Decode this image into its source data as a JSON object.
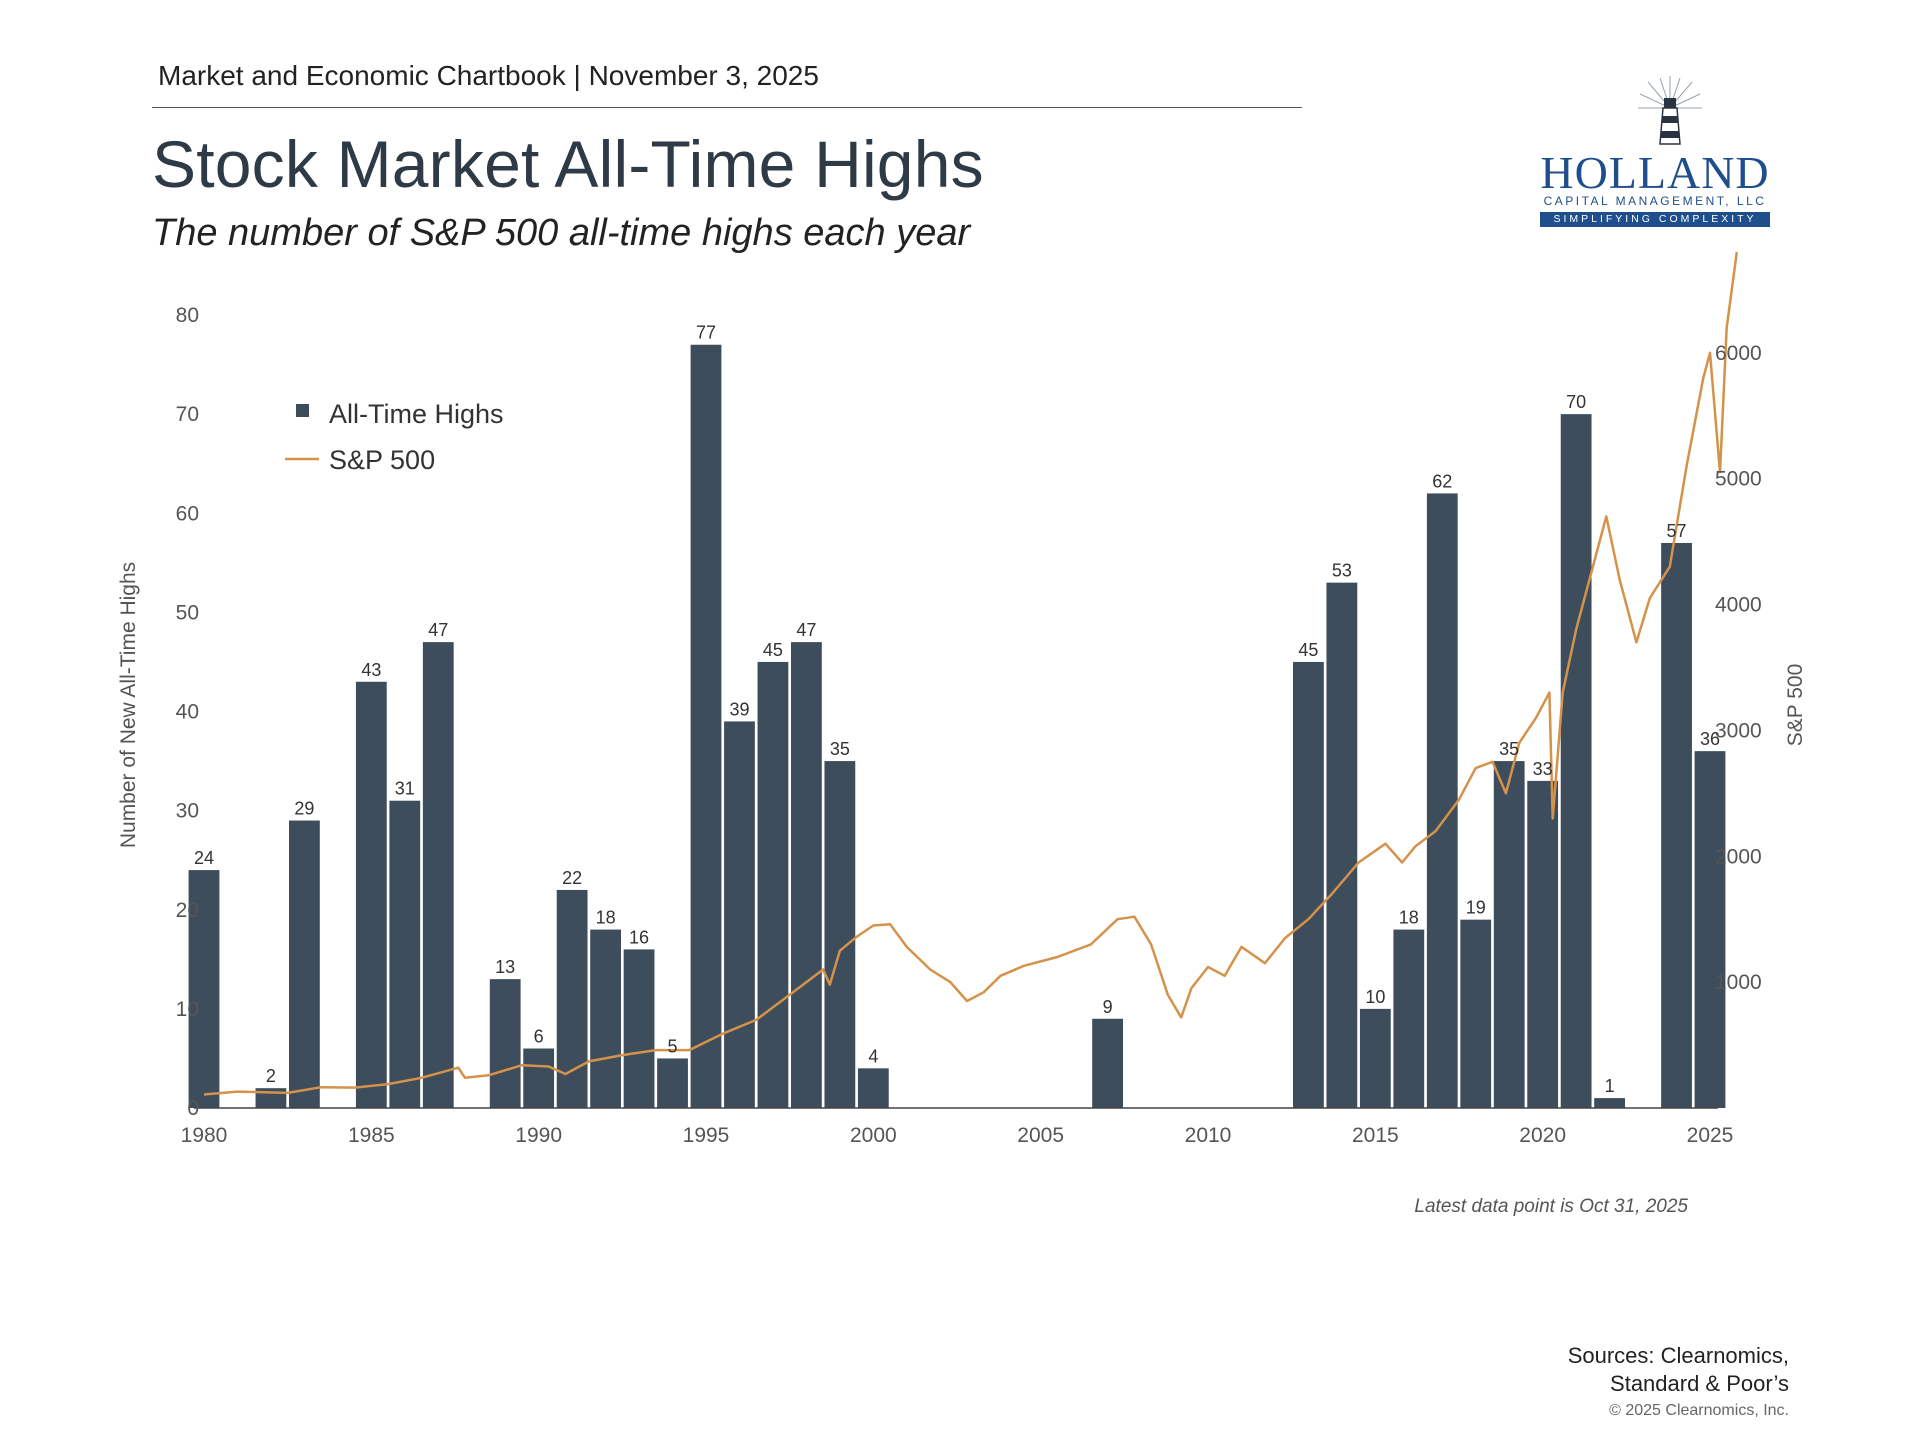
{
  "header": {
    "chartbook_line": "Market and Economic Chartbook | November 3, 2025",
    "title": "Stock Market All-Time Highs",
    "subtitle": "The number of S&P 500 all-time highs each year"
  },
  "logo": {
    "name": "HOLLAND",
    "subtitle": "CAPITAL MANAGEMENT, LLC",
    "tagline": "SIMPLIFYING COMPLEXITY"
  },
  "footer": {
    "latest_note": "Latest data point is Oct 31, 2025",
    "sources_line1": "Sources: Clearnomics,",
    "sources_line2": "Standard & Poor’s",
    "copyright": "© 2025 Clearnomics, Inc."
  },
  "colors": {
    "bar": "#3d4d5c",
    "line": "#d4924a",
    "text": "#555555"
  },
  "chart_data": {
    "type": "bar",
    "title": "Stock Market All-Time Highs",
    "ylabel": "Number of New All-Time Highs",
    "y2label": "S&P 500",
    "ylim": [
      0,
      80
    ],
    "y2lim": [
      0,
      6300
    ],
    "yticks": [
      0,
      10,
      20,
      30,
      40,
      50,
      60,
      70,
      80
    ],
    "y2ticks": [
      1000,
      2000,
      3000,
      4000,
      5000,
      6000
    ],
    "xticks": [
      1980,
      1985,
      1990,
      1995,
      2000,
      2005,
      2010,
      2015,
      2020,
      2025
    ],
    "legend_position": "top-left",
    "grid": false,
    "series": [
      {
        "name": "All-Time Highs",
        "kind": "bar",
        "axis": "left",
        "x": [
          1980,
          1981,
          1982,
          1983,
          1984,
          1985,
          1986,
          1987,
          1988,
          1989,
          1990,
          1991,
          1992,
          1993,
          1994,
          1995,
          1996,
          1997,
          1998,
          1999,
          2000,
          2001,
          2002,
          2003,
          2004,
          2005,
          2006,
          2007,
          2008,
          2009,
          2010,
          2011,
          2012,
          2013,
          2014,
          2015,
          2016,
          2017,
          2018,
          2019,
          2020,
          2021,
          2022,
          2023,
          2024,
          2025
        ],
        "values": [
          24,
          0,
          2,
          29,
          0,
          43,
          31,
          47,
          0,
          13,
          6,
          22,
          18,
          16,
          5,
          77,
          39,
          45,
          47,
          35,
          4,
          0,
          0,
          0,
          0,
          0,
          0,
          9,
          0,
          0,
          0,
          0,
          0,
          45,
          53,
          10,
          18,
          62,
          19,
          35,
          33,
          70,
          1,
          0,
          57,
          36
        ],
        "labels": [
          "24",
          "",
          "2",
          "29",
          "",
          "43",
          "31",
          "47",
          "",
          "13",
          "6",
          "22",
          "18",
          "16",
          "5",
          "77",
          "39",
          "45",
          "47",
          "35",
          "4",
          "",
          "",
          "",
          "",
          "",
          "",
          "9",
          "",
          "",
          "",
          "",
          "",
          "45",
          "53",
          "10",
          "18",
          "62",
          "19",
          "35",
          "33",
          "70",
          "1",
          "",
          "57",
          "36"
        ]
      },
      {
        "name": "S&P 500",
        "kind": "line",
        "axis": "right",
        "x": [
          1980.0,
          1981.0,
          1982.5,
          1983.5,
          1984.5,
          1985.5,
          1986.5,
          1987.6,
          1987.8,
          1988.5,
          1989.5,
          1990.3,
          1990.8,
          1991.5,
          1992.5,
          1993.5,
          1994.5,
          1995.5,
          1996.5,
          1997.5,
          1998.5,
          1998.7,
          1999.0,
          1999.5,
          2000.0,
          2000.5,
          2001.0,
          2001.7,
          2002.3,
          2002.8,
          2003.3,
          2003.8,
          2004.5,
          2005.5,
          2006.5,
          2007.3,
          2007.8,
          2008.3,
          2008.8,
          2009.2,
          2009.5,
          2010.0,
          2010.5,
          2011.0,
          2011.7,
          2012.3,
          2013.0,
          2013.7,
          2014.5,
          2015.3,
          2015.8,
          2016.2,
          2016.8,
          2017.5,
          2018.0,
          2018.5,
          2018.9,
          2019.3,
          2019.8,
          2020.2,
          2020.3,
          2020.6,
          2021.0,
          2021.5,
          2021.9,
          2022.3,
          2022.8,
          2023.2,
          2023.8,
          2024.3,
          2024.8,
          2025.0,
          2025.3,
          2025.5,
          2025.8
        ],
        "values": [
          107,
          130,
          120,
          165,
          162,
          190,
          240,
          320,
          240,
          260,
          340,
          330,
          270,
          370,
          420,
          460,
          460,
          590,
          700,
          900,
          1100,
          980,
          1250,
          1360,
          1450,
          1460,
          1280,
          1100,
          1000,
          850,
          920,
          1050,
          1130,
          1200,
          1300,
          1500,
          1520,
          1300,
          900,
          720,
          950,
          1120,
          1050,
          1280,
          1150,
          1350,
          1500,
          1700,
          1950,
          2100,
          1950,
          2080,
          2200,
          2450,
          2700,
          2750,
          2500,
          2900,
          3100,
          3300,
          2300,
          3300,
          3800,
          4300,
          4700,
          4200,
          3700,
          4050,
          4300,
          5100,
          5800,
          6000,
          5050,
          6200,
          6800
        ]
      }
    ]
  }
}
